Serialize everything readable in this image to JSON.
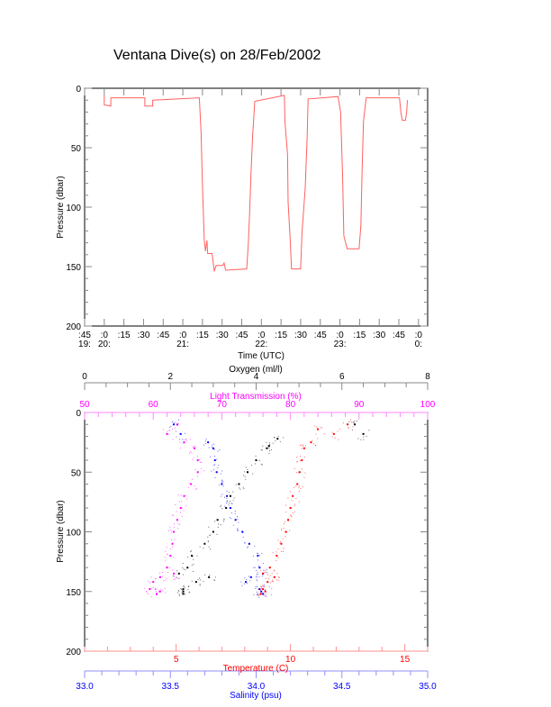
{
  "title": "Ventana Dive(s) on 28/Feb/2002",
  "chart_data": [
    {
      "type": "line",
      "title": "Ventana Dive(s) on 28/Feb/2002",
      "xlabel": "Time (UTC)",
      "ylabel": "Pressure (dbar)",
      "x_unit": "minutes after 20:00 UTC",
      "xlim": [
        -15,
        247
      ],
      "ylim": [
        0,
        200
      ],
      "y_inverted": true,
      "y_ticks": [
        "0",
        "50",
        "100",
        "150",
        "200"
      ],
      "x_ticks": [
        {
          "min": -15,
          "label": ":45",
          "hour": "19:"
        },
        {
          "min": 0,
          "label": ":0",
          "hour": "20:"
        },
        {
          "min": 15,
          "label": ":15",
          "hour": ""
        },
        {
          "min": 30,
          "label": ":30",
          "hour": ""
        },
        {
          "min": 45,
          "label": ":45",
          "hour": ""
        },
        {
          "min": 60,
          "label": ":0",
          "hour": "21:"
        },
        {
          "min": 75,
          "label": ":15",
          "hour": ""
        },
        {
          "min": 90,
          "label": ":30",
          "hour": ""
        },
        {
          "min": 105,
          "label": ":45",
          "hour": ""
        },
        {
          "min": 120,
          "label": ":0",
          "hour": "22:"
        },
        {
          "min": 135,
          "label": ":15",
          "hour": ""
        },
        {
          "min": 150,
          "label": ":30",
          "hour": ""
        },
        {
          "min": 165,
          "label": ":45",
          "hour": ""
        },
        {
          "min": 180,
          "label": ":0",
          "hour": "23:"
        },
        {
          "min": 195,
          "label": ":15",
          "hour": ""
        },
        {
          "min": 210,
          "label": ":30",
          "hour": ""
        },
        {
          "min": 225,
          "label": ":45",
          "hour": ""
        },
        {
          "min": 240,
          "label": ":0",
          "hour": "0:"
        }
      ],
      "series": [
        {
          "name": "Pressure",
          "color": "#ff6060",
          "t": [
            0,
            0,
            5,
            5,
            31,
            31,
            37,
            37,
            72.6,
            74,
            74.6,
            75.5,
            76.4,
            77.3,
            78.4,
            79,
            82.4,
            84,
            85.5,
            90.5,
            91.5,
            92.7,
            108.8,
            110,
            111,
            112,
            113.3,
            115,
            137.6,
            138,
            140,
            140.4,
            142,
            143,
            150,
            151,
            153.5,
            155,
            155.7,
            178.6,
            180.5,
            182,
            183,
            185.5,
            194.6,
            196,
            197,
            198,
            200,
            225.5,
            226.5,
            227.6,
            230,
            231,
            231.5
          ],
          "p": [
            6,
            14,
            15,
            8,
            8,
            15,
            15,
            10,
            8,
            38,
            66,
            99,
            128,
            137,
            128,
            139,
            139,
            154,
            149,
            149,
            147,
            153,
            152,
            131,
            106,
            73,
            40,
            11,
            6,
            28,
            56,
            96,
            127,
            152,
            152,
            122,
            84,
            40,
            9,
            7,
            20,
            73,
            124,
            135,
            135,
            116,
            66,
            28,
            8,
            8,
            20,
            27,
            27,
            20,
            10
          ]
        }
      ]
    },
    {
      "type": "scatter",
      "ylabel": "Pressure (dbar)",
      "ylim": [
        0,
        200
      ],
      "y_inverted": true,
      "y_ticks": [
        "0",
        "50",
        "100",
        "150",
        "200"
      ],
      "axes": {
        "oxygen": {
          "label": "Oxygen (ml/l)",
          "range": [
            0,
            8
          ],
          "ticks": [
            "0",
            "2",
            "4",
            "6",
            "8"
          ],
          "color": "#000000"
        },
        "light": {
          "label": "Light Transmission (%)",
          "range": [
            50,
            100
          ],
          "ticks": [
            "50",
            "60",
            "70",
            "80",
            "90",
            "100"
          ],
          "color": "#ff00ff"
        },
        "temperature": {
          "label": "Temperature (C)",
          "range": [
            1,
            16
          ],
          "ticks": [
            "5",
            "10",
            "15"
          ],
          "color": "#ff0000"
        },
        "salinity": {
          "label": "Salinity (psu)",
          "range": [
            33,
            35
          ],
          "ticks": [
            "33.0",
            "33.5",
            "34.0",
            "34.5",
            "35.0"
          ],
          "color": "#0000ff"
        }
      },
      "series": [
        {
          "name": "Light Transmission",
          "axis": "light",
          "color": "#ff00ff",
          "p": [
            10,
            18,
            25,
            30,
            40,
            50,
            60,
            70,
            80,
            90,
            100,
            110,
            120,
            130,
            135,
            138,
            142,
            148,
            150,
            152
          ],
          "v": [
            63.5,
            62,
            64.5,
            66,
            66.5,
            66.5,
            65.5,
            64.5,
            64,
            63.5,
            63,
            62.8,
            62.5,
            62,
            63,
            61,
            60,
            59.5,
            61,
            60.5
          ]
        },
        {
          "name": "Salinity",
          "axis": "salinity",
          "color": "#0000ff",
          "p": [
            10,
            18,
            25,
            30,
            40,
            50,
            60,
            70,
            80,
            90,
            100,
            110,
            120,
            130,
            135,
            138,
            142,
            148,
            150,
            152
          ],
          "v": [
            33.52,
            33.56,
            33.72,
            33.75,
            33.76,
            33.77,
            33.8,
            33.83,
            33.85,
            33.88,
            33.92,
            33.96,
            34.01,
            34.02,
            34.04,
            33.97,
            33.94,
            34.02,
            34.03,
            34.04
          ]
        },
        {
          "name": "Temperature",
          "axis": "temperature",
          "color": "#ff0000",
          "p": [
            10,
            14,
            18,
            25,
            30,
            40,
            50,
            60,
            70,
            80,
            90,
            100,
            110,
            120,
            130,
            135,
            138,
            142,
            148,
            150,
            152
          ],
          "v": [
            12.5,
            11.2,
            11.9,
            10.9,
            10.6,
            10.5,
            10.4,
            10.3,
            10.1,
            10.0,
            9.9,
            9.8,
            9.6,
            9.4,
            9.1,
            8.8,
            9.3,
            9.0,
            8.8,
            8.9,
            8.7
          ]
        },
        {
          "name": "Oxygen",
          "axis": "oxygen",
          "color": "#000000",
          "p": [
            10,
            18,
            22,
            28,
            30,
            40,
            50,
            60,
            70,
            80,
            90,
            100,
            110,
            120,
            130,
            135,
            138,
            142,
            148,
            150,
            152
          ],
          "v": [
            6.3,
            6.5,
            4.5,
            4.3,
            4.25,
            4.0,
            3.8,
            3.6,
            3.4,
            3.3,
            3.1,
            3.0,
            2.8,
            2.5,
            2.4,
            2.2,
            2.9,
            2.6,
            2.3,
            2.3,
            2.3
          ]
        }
      ]
    }
  ]
}
